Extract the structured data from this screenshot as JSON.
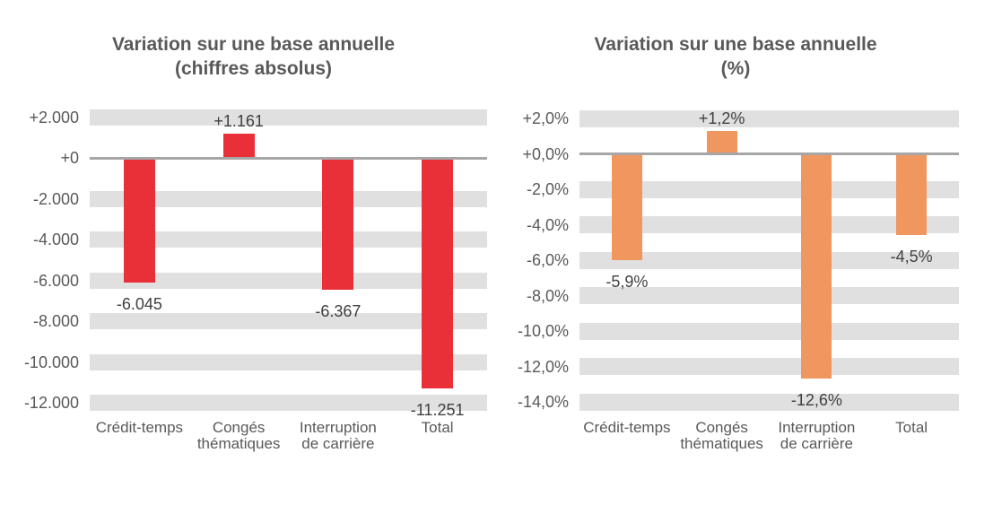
{
  "colors": {
    "bar_red": "#e93039",
    "bar_orange": "#f0965f",
    "grid_band": "#e0e0e0",
    "zero_line": "#a6a6a6",
    "axis_text": "#595959",
    "data_label_text": "#404040",
    "title_text": "#595959",
    "background": "#ffffff"
  },
  "chart_data": [
    {
      "type": "bar",
      "title": "Variation sur une base annuelle (chiffres absolus)",
      "title_lines": [
        "Variation sur une base annuelle",
        "(chiffres absolus)"
      ],
      "categories": [
        "Crédit-temps",
        "Congés thématiques",
        "Interruption de carrière",
        "Total"
      ],
      "category_lines": [
        [
          "Crédit-temps"
        ],
        [
          "Congés",
          "thématiques"
        ],
        [
          "Interruption",
          "de carrière"
        ],
        [
          "Total"
        ]
      ],
      "values": [
        -6045,
        1161,
        -6367,
        -11251
      ],
      "data_labels": [
        "-6.045",
        "+1.161",
        "-6.367",
        "-11.251"
      ],
      "bar_color": "#e93039",
      "y_tick_labels": [
        "+2.000",
        "+0",
        "-2.000",
        "-4.000",
        "-6.000",
        "-8.000",
        "-10.000",
        "-12.000"
      ],
      "y_tick_values": [
        2000,
        0,
        -2000,
        -4000,
        -6000,
        -8000,
        -10000,
        -12000
      ],
      "tick_step": 2000,
      "ylim": [
        2000,
        -12000
      ],
      "grid": "horizontal-striped-bands",
      "legend": "none",
      "xlabel": "",
      "ylabel": ""
    },
    {
      "type": "bar",
      "title": "Variation sur une base annuelle (%)",
      "title_lines": [
        "Variation sur une base annuelle",
        "(%)"
      ],
      "categories": [
        "Crédit-temps",
        "Congés thématiques",
        "Interruption de carrière",
        "Total"
      ],
      "category_lines": [
        [
          "Crédit-temps"
        ],
        [
          "Congés",
          "thématiques"
        ],
        [
          "Interruption",
          "de carrière"
        ],
        [
          "Total"
        ]
      ],
      "values": [
        -5.9,
        1.2,
        -12.6,
        -4.5
      ],
      "data_labels": [
        "-5,9%",
        "+1,2%",
        "-12,6%",
        "-4,5%"
      ],
      "bar_color": "#f0965f",
      "y_tick_labels": [
        "+2,0%",
        "+0,0%",
        "-2,0%",
        "-4,0%",
        "-6,0%",
        "-8,0%",
        "-10,0%",
        "-12,0%",
        "-14,0%"
      ],
      "y_tick_values": [
        2,
        0,
        -2,
        -4,
        -6,
        -8,
        -10,
        -12,
        -14
      ],
      "tick_step": 2,
      "ylim": [
        2,
        -14
      ],
      "grid": "horizontal-striped-bands",
      "legend": "none",
      "xlabel": "",
      "ylabel": ""
    }
  ]
}
